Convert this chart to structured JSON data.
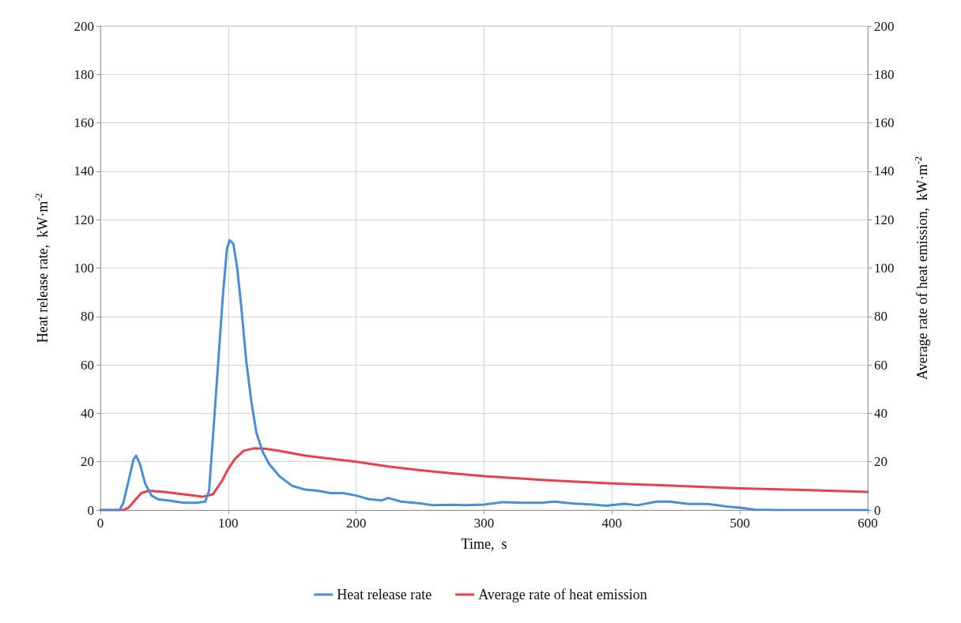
{
  "chart_data": {
    "type": "line",
    "xlabel": "Time,  s",
    "ylabel": "Heat release rate,  kW·m$^{-2}$",
    "y2label": "Average rate of heat emission,  kW·m$^{-2}$",
    "xlim": [
      0,
      600
    ],
    "xticks": [
      0,
      100,
      200,
      300,
      400,
      500,
      600
    ],
    "ylim": [
      0,
      200
    ],
    "yticks": [
      0,
      20,
      40,
      60,
      80,
      100,
      120,
      140,
      160,
      180,
      200
    ],
    "y2lim": [
      0,
      200
    ],
    "y2ticks": [
      0,
      20,
      40,
      60,
      80,
      100,
      120,
      140,
      160,
      180,
      200
    ],
    "grid": true,
    "legend": "bottom",
    "marker": "none",
    "line_style": "solid",
    "series": [
      {
        "name": "Heat release rate",
        "color": "#4a8fd6",
        "x": [
          0,
          15,
          18,
          22,
          26,
          28,
          31,
          35,
          40,
          45,
          55,
          65,
          75,
          82,
          85,
          88,
          92,
          96,
          99,
          101,
          104,
          107,
          110,
          114,
          118,
          122,
          127,
          132,
          140,
          150,
          160,
          170,
          180,
          190,
          200,
          210,
          220,
          225,
          235,
          250,
          260,
          275,
          285,
          300,
          315,
          330,
          345,
          355,
          370,
          385,
          395,
          410,
          420,
          435,
          445,
          460,
          475,
          490,
          500,
          512,
          530,
          600
        ],
        "values": [
          0,
          0,
          3,
          12,
          21,
          22.5,
          19,
          11,
          6,
          4.5,
          3.8,
          3,
          3,
          3.5,
          8,
          30,
          60,
          90,
          108,
          111.5,
          110,
          100,
          85,
          62,
          45,
          32,
          24,
          19,
          14,
          10,
          8.5,
          8,
          7,
          7,
          6,
          4.5,
          4,
          5,
          3.5,
          2.8,
          2,
          2.2,
          2,
          2.3,
          3.3,
          3,
          3,
          3.5,
          2.7,
          2.3,
          1.8,
          2.6,
          2,
          3.5,
          3.5,
          2.5,
          2.5,
          1.5,
          1,
          0.2,
          0,
          0
        ]
      },
      {
        "name": "Average rate of heat emission",
        "color": "#e8404f",
        "axis": "y2",
        "x": [
          0,
          18,
          22,
          27,
          32,
          38,
          50,
          65,
          80,
          88,
          95,
          100,
          105,
          112,
          120,
          130,
          140,
          150,
          160,
          175,
          200,
          225,
          250,
          275,
          300,
          350,
          400,
          450,
          500,
          550,
          600
        ],
        "values": [
          0,
          0,
          1,
          4,
          7,
          8,
          7.5,
          6.5,
          5.5,
          6.5,
          12,
          17,
          21,
          24.5,
          25.5,
          25.3,
          24.5,
          23.5,
          22.5,
          21.5,
          20,
          18,
          16.5,
          15.2,
          14,
          12.3,
          11,
          10,
          9,
          8.3,
          7.5
        ]
      }
    ]
  }
}
